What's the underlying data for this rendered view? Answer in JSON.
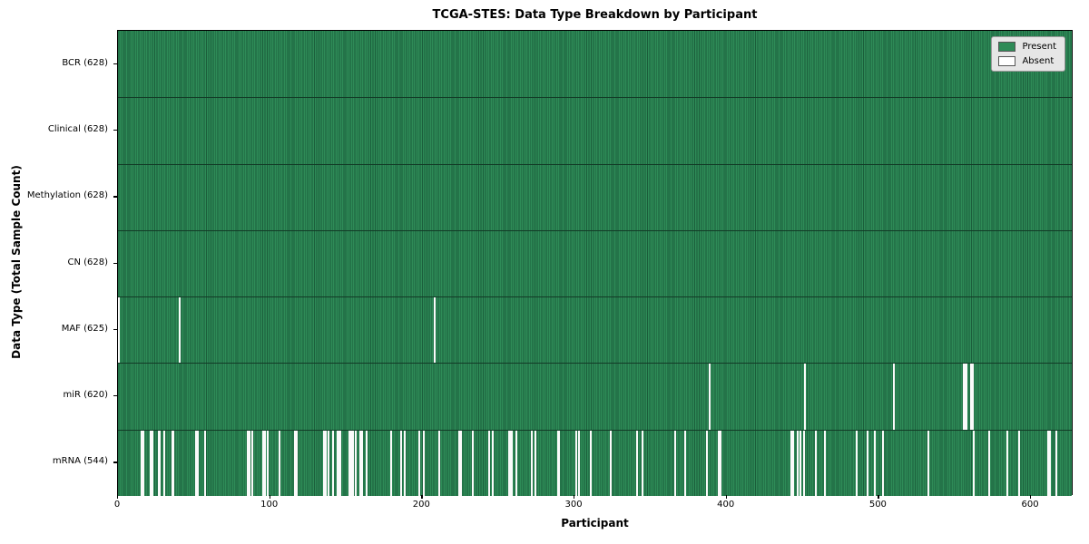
{
  "chart_data": {
    "type": "heatmap",
    "title": "TCGA-STES: Data Type Breakdown by Participant",
    "xlabel": "Participant",
    "ylabel": "Data Type (Total Sample Count)",
    "n_participants": 628,
    "x_ticks": [
      0,
      100,
      200,
      300,
      400,
      500,
      600
    ],
    "legend": {
      "position": "upper right",
      "entries": [
        {
          "label": "Present",
          "color": "#2e8b57"
        },
        {
          "label": "Absent",
          "color": "#ffffff"
        }
      ]
    },
    "colors": {
      "present": "#2e8b57",
      "present_edge": "#1b5e3b",
      "absent": "#fafafa",
      "row_divider": "#123a26",
      "plot_border": "#000000",
      "legend_bg": "#e6e6e6",
      "legend_border": "#999999"
    },
    "rows": [
      {
        "label": "BCR (628)",
        "present_count": 628,
        "absent_participants": []
      },
      {
        "label": "Clinical (628)",
        "present_count": 628,
        "absent_participants": []
      },
      {
        "label": "Methylation (628)",
        "present_count": 628,
        "absent_participants": []
      },
      {
        "label": "CN (628)",
        "present_count": 628,
        "absent_participants": []
      },
      {
        "label": "MAF (625)",
        "present_count": 625,
        "absent_participants": [
          0,
          40,
          208
        ]
      },
      {
        "label": "miR (620)",
        "present_count": 620,
        "absent_participants": [
          389,
          452,
          510,
          556,
          557,
          558,
          561,
          562
        ]
      },
      {
        "label": "mRNA (544)",
        "present_count": 544,
        "absent_participants": [
          15,
          16,
          21,
          22,
          26,
          27,
          30,
          35,
          36,
          51,
          52,
          57,
          85,
          86,
          88,
          95,
          96,
          98,
          106,
          116,
          117,
          135,
          136,
          138,
          141,
          144,
          145,
          146,
          152,
          153,
          154,
          156,
          159,
          160,
          163,
          179,
          186,
          188,
          198,
          201,
          211,
          224,
          225,
          233,
          244,
          246,
          257,
          258,
          259,
          262,
          272,
          274,
          289,
          290,
          301,
          303,
          311,
          324,
          341,
          345,
          366,
          373,
          387,
          395,
          396,
          443,
          444,
          447,
          449,
          451,
          459,
          465,
          486,
          493,
          498,
          503,
          533,
          563,
          573,
          585,
          593,
          612,
          613,
          617
        ]
      }
    ]
  }
}
